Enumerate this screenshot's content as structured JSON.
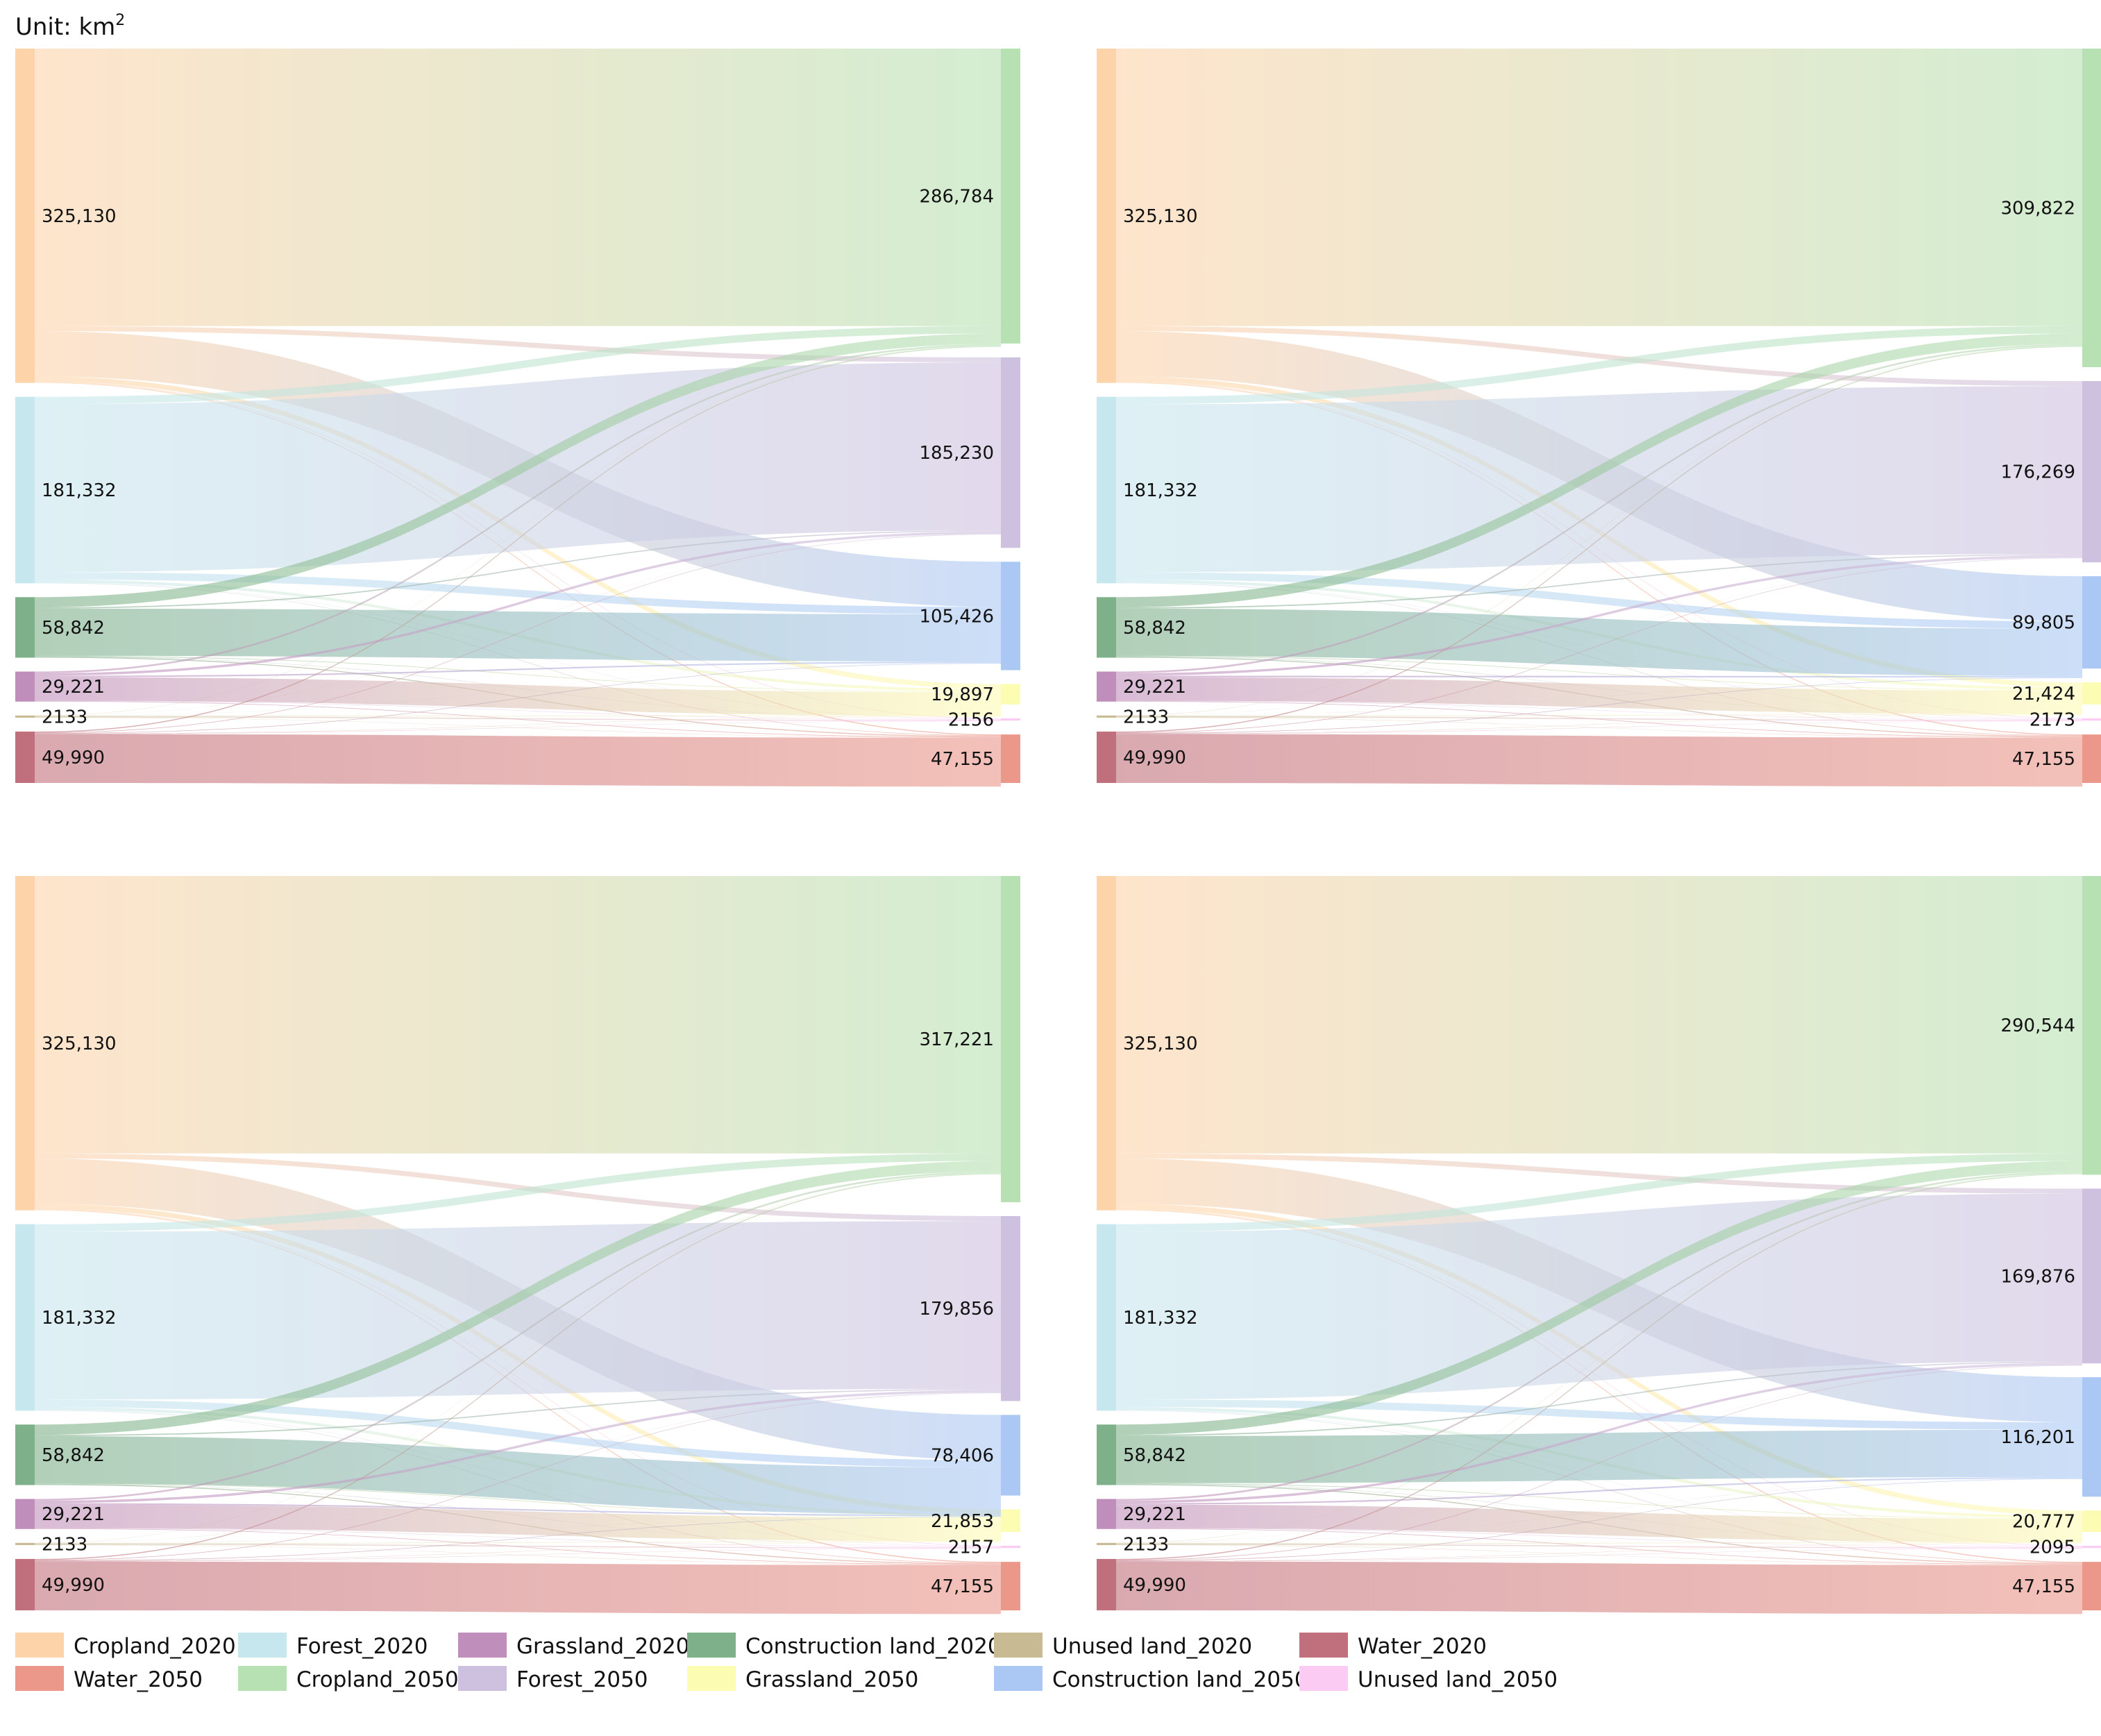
{
  "unit_label": "Unit: km",
  "unit_superscript": "2",
  "colors": {
    "Cropland_2020": "#FDD3AA",
    "Forest_2020": "#C7E7EE",
    "Grassland_2020": "#C08EBB",
    "Construction land_2020": "#7EB089",
    "Unused land_2020": "#C8BA92",
    "Water_2020": "#C0707C",
    "Water_2050": "#EB978A",
    "Cropland_2050": "#B7E1B3",
    "Forest_2050": "#CEC1DF",
    "Grassland_2050": "#FDFCB3",
    "Construction land_2050": "#ABC8F4",
    "Unused land_2050": "#FBCBF3"
  },
  "legend": {
    "row1": [
      "Cropland_2020",
      "Forest_2020",
      "Grassland_2020",
      "Construction land_2020",
      "Unused land_2020",
      "Water_2020"
    ],
    "row2": [
      "Water_2050",
      "Cropland_2050",
      "Forest_2050",
      "Grassland_2050",
      "Construction land_2050",
      "Unused land_2050"
    ]
  },
  "chart_data": [
    {
      "type": "sankey",
      "unit": "km2",
      "sources": [
        {
          "name": "Cropland_2020",
          "value": 325130,
          "label": "325,130"
        },
        {
          "name": "Forest_2020",
          "value": 181332,
          "label": "181,332"
        },
        {
          "name": "Construction land_2020",
          "value": 58842,
          "label": "58,842"
        },
        {
          "name": "Grassland_2020",
          "value": 29221,
          "label": "29,221"
        },
        {
          "name": "Unused land_2020",
          "value": 2133,
          "label": "2133"
        },
        {
          "name": "Water_2020",
          "value": 49990,
          "label": "49,990"
        }
      ],
      "targets": [
        {
          "name": "Cropland_2050",
          "value": 286784,
          "label": "286,784"
        },
        {
          "name": "Forest_2050",
          "value": 185230,
          "label": "185,230"
        },
        {
          "name": "Construction land_2050",
          "value": 105426,
          "label": "105,426"
        },
        {
          "name": "Grassland_2050",
          "value": 19897,
          "label": "19,897"
        },
        {
          "name": "Unused land_2050",
          "value": 2156,
          "label": "2156"
        },
        {
          "name": "Water_2050",
          "value": 47155,
          "label": "47,155"
        }
      ]
    },
    {
      "type": "sankey",
      "unit": "km2",
      "sources": [
        {
          "name": "Cropland_2020",
          "value": 325130,
          "label": "325,130"
        },
        {
          "name": "Forest_2020",
          "value": 181332,
          "label": "181,332"
        },
        {
          "name": "Construction land_2020",
          "value": 58842,
          "label": "58,842"
        },
        {
          "name": "Grassland_2020",
          "value": 29221,
          "label": "29,221"
        },
        {
          "name": "Unused land_2020",
          "value": 2133,
          "label": "2133"
        },
        {
          "name": "Water_2020",
          "value": 49990,
          "label": "49,990"
        }
      ],
      "targets": [
        {
          "name": "Cropland_2050",
          "value": 309822,
          "label": "309,822"
        },
        {
          "name": "Forest_2050",
          "value": 176269,
          "label": "176,269"
        },
        {
          "name": "Construction land_2050",
          "value": 89805,
          "label": "89,805"
        },
        {
          "name": "Grassland_2050",
          "value": 21424,
          "label": "21,424"
        },
        {
          "name": "Unused land_2050",
          "value": 2173,
          "label": "2173"
        },
        {
          "name": "Water_2050",
          "value": 47155,
          "label": "47,155"
        }
      ]
    },
    {
      "type": "sankey",
      "unit": "km2",
      "sources": [
        {
          "name": "Cropland_2020",
          "value": 325130,
          "label": "325,130"
        },
        {
          "name": "Forest_2020",
          "value": 181332,
          "label": "181,332"
        },
        {
          "name": "Construction land_2020",
          "value": 58842,
          "label": "58,842"
        },
        {
          "name": "Grassland_2020",
          "value": 29221,
          "label": "29,221"
        },
        {
          "name": "Unused land_2020",
          "value": 2133,
          "label": "2133"
        },
        {
          "name": "Water_2020",
          "value": 49990,
          "label": "49,990"
        }
      ],
      "targets": [
        {
          "name": "Cropland_2050",
          "value": 317221,
          "label": "317,221"
        },
        {
          "name": "Forest_2050",
          "value": 179856,
          "label": "179,856"
        },
        {
          "name": "Construction land_2050",
          "value": 78406,
          "label": "78,406"
        },
        {
          "name": "Grassland_2050",
          "value": 21853,
          "label": "21,853"
        },
        {
          "name": "Unused land_2050",
          "value": 2157,
          "label": "2157"
        },
        {
          "name": "Water_2050",
          "value": 47155,
          "label": "47,155"
        }
      ]
    },
    {
      "type": "sankey",
      "unit": "km2",
      "sources": [
        {
          "name": "Cropland_2020",
          "value": 325130,
          "label": "325,130"
        },
        {
          "name": "Forest_2020",
          "value": 181332,
          "label": "181,332"
        },
        {
          "name": "Construction land_2020",
          "value": 58842,
          "label": "58,842"
        },
        {
          "name": "Grassland_2020",
          "value": 29221,
          "label": "29,221"
        },
        {
          "name": "Unused land_2020",
          "value": 2133,
          "label": "2133"
        },
        {
          "name": "Water_2020",
          "value": 49990,
          "label": "49,990"
        }
      ],
      "targets": [
        {
          "name": "Cropland_2050",
          "value": 290544,
          "label": "290,544"
        },
        {
          "name": "Forest_2050",
          "value": 169876,
          "label": "169,876"
        },
        {
          "name": "Construction land_2050",
          "value": 116201,
          "label": "116,201"
        },
        {
          "name": "Grassland_2050",
          "value": 20777,
          "label": "20,777"
        },
        {
          "name": "Unused land_2050",
          "value": 2095,
          "label": "2095"
        },
        {
          "name": "Water_2050",
          "value": 47155,
          "label": "47,155"
        }
      ]
    }
  ]
}
